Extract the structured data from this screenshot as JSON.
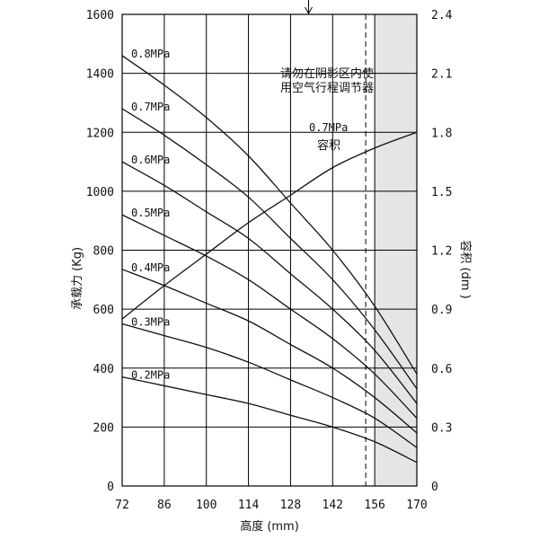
{
  "chart_data": {
    "type": "line",
    "xlabel": "高度 (mm)",
    "ylabel_left": "承载力 (Kg)",
    "ylabel_right": "容积 (dm )",
    "xlim": [
      72,
      170
    ],
    "ylim_left": [
      0,
      1600
    ],
    "ylim_right": [
      0,
      2.4
    ],
    "x_ticks": [
      72,
      86,
      100,
      114,
      128,
      142,
      156,
      170
    ],
    "y_ticks_left": [
      0,
      200,
      400,
      600,
      800,
      1000,
      1200,
      1400,
      1600
    ],
    "y_ticks_right": [
      "0",
      "0.3",
      "0.6",
      "0.9",
      "1.2",
      "1.5",
      "1.8",
      "2.1",
      "2.4"
    ],
    "grid": true,
    "shaded_region": {
      "x_from": 156,
      "x_to": 170
    },
    "dashed_line_x": 153,
    "arrow_x": 134,
    "shaded_note": [
      "请勿在阴影区内使",
      "用空气行程调节器"
    ],
    "series": [
      {
        "name": "0.8MPa",
        "axis": "left",
        "x": [
          72,
          86,
          100,
          114,
          128,
          142,
          156,
          170
        ],
        "y": [
          1460,
          1360,
          1250,
          1120,
          960,
          800,
          610,
          380
        ]
      },
      {
        "name": "0.7MPa",
        "axis": "left",
        "x": [
          72,
          86,
          100,
          114,
          128,
          142,
          156,
          170
        ],
        "y": [
          1280,
          1190,
          1090,
          980,
          840,
          700,
          530,
          330
        ]
      },
      {
        "name": "0.6MPa",
        "axis": "left",
        "x": [
          72,
          86,
          100,
          114,
          128,
          142,
          156,
          170
        ],
        "y": [
          1100,
          1020,
          930,
          840,
          720,
          600,
          460,
          280
        ]
      },
      {
        "name": "0.5MPa",
        "axis": "left",
        "x": [
          72,
          86,
          100,
          114,
          128,
          142,
          156,
          170
        ],
        "y": [
          920,
          850,
          780,
          700,
          600,
          500,
          380,
          230
        ]
      },
      {
        "name": "0.4MPa",
        "axis": "left",
        "x": [
          72,
          86,
          100,
          114,
          128,
          142,
          156,
          170
        ],
        "y": [
          735,
          680,
          620,
          560,
          480,
          400,
          300,
          180
        ]
      },
      {
        "name": "0.3MPa",
        "axis": "left",
        "x": [
          72,
          86,
          100,
          114,
          128,
          142,
          156,
          170
        ],
        "y": [
          550,
          510,
          470,
          420,
          360,
          300,
          230,
          130
        ]
      },
      {
        "name": "0.2MPa",
        "axis": "left",
        "x": [
          72,
          86,
          100,
          114,
          128,
          142,
          156,
          170
        ],
        "y": [
          370,
          340,
          310,
          280,
          240,
          200,
          150,
          80
        ]
      },
      {
        "name": "0.7MPa 容积",
        "axis": "right",
        "x": [
          72,
          86,
          100,
          114,
          128,
          142,
          156,
          170
        ],
        "y": [
          0.85,
          1.02,
          1.18,
          1.34,
          1.48,
          1.62,
          1.72,
          1.8
        ]
      }
    ]
  }
}
